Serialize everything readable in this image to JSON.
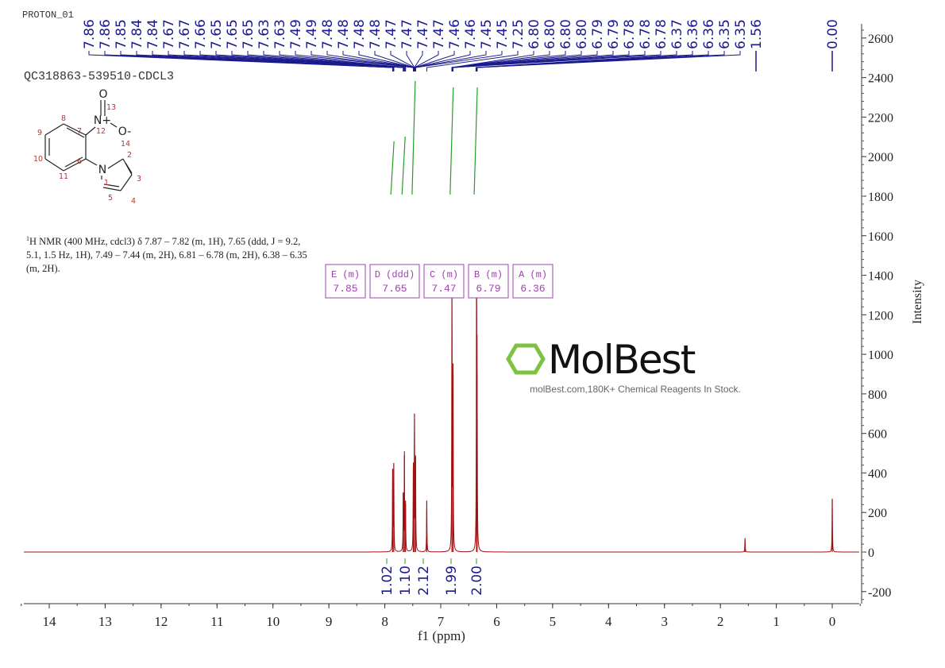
{
  "header": {
    "experiment": "PROTON_01",
    "sample": "QC318863-539510-CDCL3"
  },
  "nmr_description": {
    "prefix": "1",
    "text": "H NMR (400 MHz, cdcl3) δ 7.87 – 7.82 (m, 1H), 7.65 (ddd, J = 9.2, 5.1, 1.5 Hz, 1H), 7.49 – 7.44 (m, 2H), 6.81 – 6.78 (m, 2H), 6.38 – 6.35 (m, 2H)."
  },
  "structure": {
    "atom_labels": [
      "1",
      "2",
      "3",
      "4",
      "5",
      "6",
      "7",
      "8",
      "9",
      "10",
      "11",
      "12",
      "13",
      "14"
    ],
    "symbols": [
      "N",
      "N+",
      "O",
      "O-"
    ]
  },
  "watermark": {
    "logo": "MolBest",
    "tagline": "molBest.com,180K+ Chemical Reagents In Stock."
  },
  "colors": {
    "spectrum": "#a01010",
    "peak_labels": "#1a1a8c",
    "integrals": "#2a9a2a",
    "multiplets": "#a040b0",
    "axis": "#333333"
  },
  "chart_data": {
    "type": "line",
    "xlabel": "f1 (ppm)",
    "ylabel": "Intensity",
    "xlim": [
      14.5,
      -0.5
    ],
    "ylim": [
      -250,
      2650
    ],
    "x_ticks": [
      "14",
      "13",
      "12",
      "11",
      "10",
      "9",
      "8",
      "7",
      "6",
      "5",
      "4",
      "3",
      "2",
      "1",
      "0"
    ],
    "y_ticks": [
      "-200",
      "0",
      "200",
      "400",
      "600",
      "800",
      "1000",
      "1200",
      "1400",
      "1600",
      "1800",
      "2000",
      "2200",
      "2400",
      "2600"
    ],
    "peak_labels": [
      "7.86",
      "7.86",
      "7.85",
      "7.84",
      "7.84",
      "7.67",
      "7.67",
      "7.66",
      "7.65",
      "7.65",
      "7.65",
      "7.63",
      "7.63",
      "7.49",
      "7.49",
      "7.48",
      "7.48",
      "7.48",
      "7.48",
      "7.47",
      "7.47",
      "7.47",
      "7.47",
      "7.46",
      "7.46",
      "7.45",
      "7.45",
      "7.25",
      "6.80",
      "6.80",
      "6.80",
      "6.80",
      "6.79",
      "6.79",
      "6.78",
      "6.78",
      "6.78",
      "6.37",
      "6.36",
      "6.36",
      "6.35",
      "6.35",
      "1.56",
      "0.00"
    ],
    "peaks": [
      {
        "ppm": 7.86,
        "intensity": 420
      },
      {
        "ppm": 7.84,
        "intensity": 450
      },
      {
        "ppm": 7.67,
        "intensity": 300
      },
      {
        "ppm": 7.65,
        "intensity": 490
      },
      {
        "ppm": 7.63,
        "intensity": 260
      },
      {
        "ppm": 7.49,
        "intensity": 420
      },
      {
        "ppm": 7.47,
        "intensity": 700
      },
      {
        "ppm": 7.45,
        "intensity": 480
      },
      {
        "ppm": 7.25,
        "intensity": 260
      },
      {
        "ppm": 6.8,
        "intensity": 1400
      },
      {
        "ppm": 6.78,
        "intensity": 900
      },
      {
        "ppm": 6.36,
        "intensity": 1420
      },
      {
        "ppm": 6.35,
        "intensity": 900
      },
      {
        "ppm": 1.56,
        "intensity": 70
      },
      {
        "ppm": 0.0,
        "intensity": 270
      }
    ],
    "multiplets": [
      {
        "label": "D (ddd)",
        "shift": "7.65"
      },
      {
        "label": "B (m)",
        "shift": "6.79"
      },
      {
        "label": "C (m)",
        "shift": "7.47"
      },
      {
        "label": "A (m)",
        "shift": "6.36"
      },
      {
        "label": "E (m)",
        "shift": "7.85"
      }
    ],
    "integrals": [
      {
        "ppm": 7.85,
        "value": "1.02"
      },
      {
        "ppm": 7.65,
        "value": "1.10"
      },
      {
        "ppm": 7.47,
        "value": "2.12"
      },
      {
        "ppm": 6.79,
        "value": "1.99"
      },
      {
        "ppm": 6.36,
        "value": "2.00"
      }
    ]
  }
}
